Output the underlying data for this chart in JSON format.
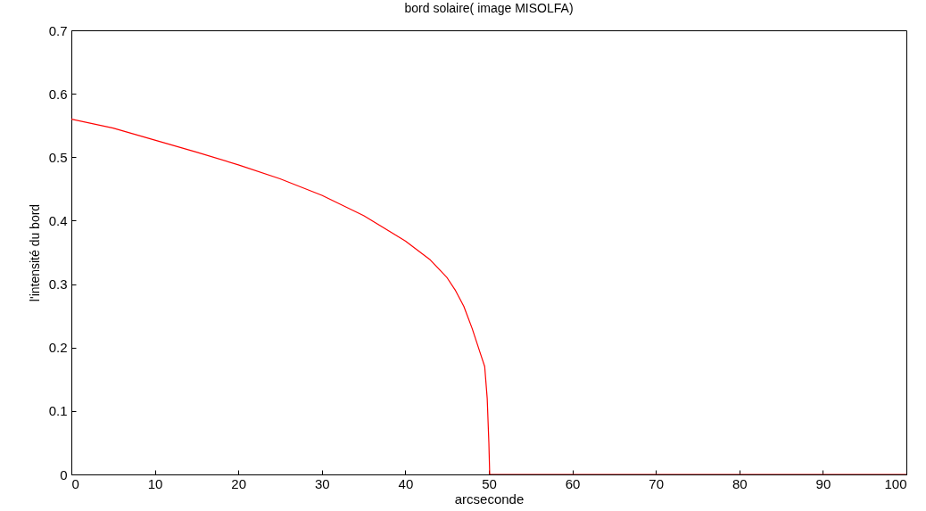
{
  "chart_data": {
    "type": "line",
    "title": "bord solaire( image MISOLFA)",
    "xlabel": "arcseconde",
    "ylabel": "l'intensité du bord",
    "x": [
      0,
      5,
      10,
      15,
      20,
      25,
      30,
      35,
      40,
      43,
      45,
      46,
      47,
      48,
      49,
      49.5,
      49.8,
      50,
      50.1,
      60,
      70,
      80,
      90,
      100
    ],
    "series": [
      {
        "color": "#ff0000",
        "values": [
          0.56,
          0.546,
          0.527,
          0.508,
          0.488,
          0.466,
          0.44,
          0.408,
          0.368,
          0.338,
          0.31,
          0.29,
          0.265,
          0.23,
          0.19,
          0.17,
          0.12,
          0.05,
          0,
          0,
          0,
          0,
          0,
          0
        ]
      }
    ],
    "xlim": [
      0,
      100
    ],
    "xticks": [
      0,
      10,
      20,
      30,
      40,
      50,
      60,
      70,
      80,
      90,
      100
    ],
    "ylim": [
      0,
      0.7
    ],
    "yticks": [
      0,
      0.1,
      0.2,
      0.3,
      0.4,
      0.5,
      0.6,
      0.7
    ],
    "grid": false,
    "marker": "none",
    "line_style": "solid"
  }
}
